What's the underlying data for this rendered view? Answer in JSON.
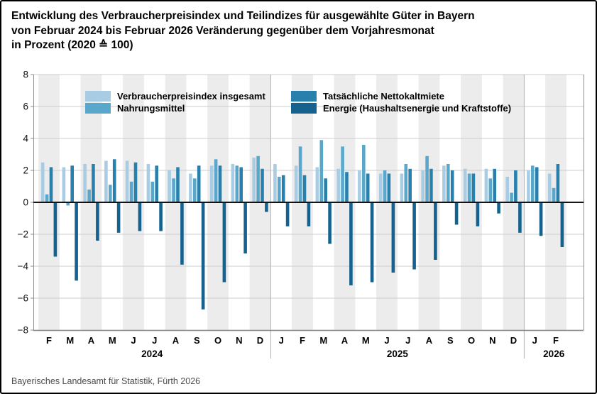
{
  "title": {
    "lines": [
      "Entwicklung des Verbraucherpreisindex und Teilindizes für ausgewählte Güter in Bayern",
      "von Februar 2024 bis Februar 2026 Veränderung gegenüber dem Vorjahresmonat",
      "in Prozent (2020 ≙ 100)"
    ]
  },
  "footer": {
    "source": "Bayerisches Landesamt für Statistik, Fürth 2026"
  },
  "chart_data": {
    "type": "bar",
    "title": "Entwicklung des Verbraucherpreisindex und Teilindizes für ausgewählte Güter in Bayern von Februar 2024 bis Februar 2026, Veränderung gegenüber dem Vorjahresmonat in Prozent (2020 ≙ 100)",
    "ylabel": "Veränderung gegenüber dem Vorjahresmonat in Prozent",
    "ylim": [
      -8,
      8
    ],
    "ytick_step": 2,
    "grid": true,
    "legend_position": "top-inside",
    "months": [
      "F",
      "M",
      "A",
      "M",
      "J",
      "J",
      "A",
      "S",
      "O",
      "N",
      "D",
      "J",
      "F",
      "M",
      "A",
      "M",
      "J",
      "J",
      "A",
      "S",
      "O",
      "N",
      "D",
      "J",
      "F"
    ],
    "year_groups": [
      {
        "label": "2024",
        "start": 0,
        "count": 11
      },
      {
        "label": "2025",
        "start": 11,
        "count": 12
      },
      {
        "label": "2026",
        "start": 23,
        "count": 2
      }
    ],
    "series": [
      {
        "name": "Verbraucherpreisindex insgesamt",
        "color": "#a7cce3",
        "values": [
          2.5,
          2.2,
          2.4,
          2.6,
          2.6,
          2.4,
          2.0,
          1.8,
          2.3,
          2.4,
          2.8,
          2.4,
          2.3,
          2.2,
          2.1,
          2.0,
          1.8,
          1.8,
          2.0,
          2.3,
          2.1,
          2.1,
          1.6,
          2.0,
          1.8
        ]
      },
      {
        "name": "Nahrungsmittel",
        "color": "#5aa7cc",
        "values": [
          0.5,
          -0.2,
          0.8,
          1.1,
          1.3,
          1.3,
          1.5,
          1.5,
          2.7,
          2.3,
          2.9,
          1.6,
          3.5,
          3.9,
          3.5,
          3.6,
          2.0,
          2.4,
          2.9,
          2.4,
          1.8,
          1.5,
          0.6,
          2.3,
          0.9
        ]
      },
      {
        "name": "Tatsächliche Nettokaltmiete",
        "color": "#2980ad",
        "values": [
          2.2,
          2.3,
          2.4,
          2.7,
          2.5,
          2.3,
          2.2,
          2.3,
          2.3,
          2.2,
          2.1,
          1.7,
          1.7,
          1.5,
          1.9,
          1.8,
          1.8,
          2.1,
          2.1,
          2.0,
          1.8,
          2.1,
          2.0,
          2.2,
          2.4
        ]
      },
      {
        "name": "Energie (Haushaltsenergie und Kraftstoffe)",
        "color": "#15628e",
        "values": [
          -3.4,
          -4.9,
          -2.4,
          -1.9,
          -1.8,
          -1.8,
          -3.9,
          -6.7,
          -5.0,
          -3.2,
          -0.6,
          -1.5,
          -1.5,
          -2.6,
          -5.2,
          -5.0,
          -4.4,
          -4.2,
          -3.6,
          -1.4,
          -1.5,
          -0.7,
          -1.9,
          -2.1,
          -2.8
        ]
      }
    ],
    "style": {
      "band_color": "#ececec",
      "grid_color": "#cccccc",
      "zero_line_color": "#141414",
      "axis_color": "#8c8c8c",
      "label_color": "#000000"
    }
  }
}
